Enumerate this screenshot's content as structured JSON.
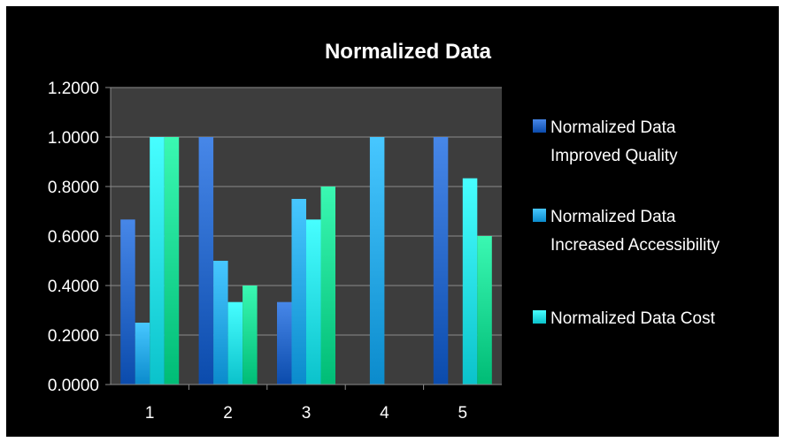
{
  "chart_data": {
    "type": "bar",
    "title": "Normalized Data",
    "xlabel": "",
    "ylabel": "",
    "categories": [
      "1",
      "2",
      "3",
      "4",
      "5"
    ],
    "ylim": [
      0,
      1.2
    ],
    "yticks": [
      "0.0000",
      "0.2000",
      "0.4000",
      "0.6000",
      "0.8000",
      "1.0000",
      "1.2000"
    ],
    "grid": true,
    "legend_position": "right",
    "series": [
      {
        "name": "Normalized Data Improved Quality",
        "legend_lines": [
          "Normalized Data",
          "Improved Quality"
        ],
        "color": "#1f5fc0",
        "values": [
          0.6667,
          1.0,
          0.3333,
          0,
          1.0
        ]
      },
      {
        "name": "Normalized Data Increased Accessibility",
        "legend_lines": [
          "Normalized Data",
          "Increased Accessibility"
        ],
        "color": "#1f9fe0",
        "values": [
          0.25,
          0.5,
          0.75,
          1.0,
          0
        ]
      },
      {
        "name": "Normalized Data Cost",
        "legend_lines": [
          "Normalized Data  Cost"
        ],
        "color": "#1fd6df",
        "values": [
          1.0,
          0.3333,
          0.6667,
          0,
          0.8333
        ]
      },
      {
        "name": "",
        "legend_lines": [],
        "color": "#12d08a",
        "values": [
          1.0,
          0.4,
          0.8,
          0,
          0.6
        ]
      }
    ]
  }
}
